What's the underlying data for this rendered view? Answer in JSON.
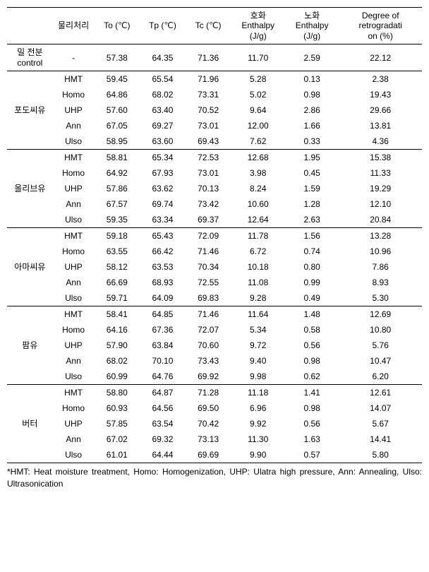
{
  "headers": {
    "col1": "",
    "col2": "물리처리",
    "col3": "To (℃)",
    "col4": "Tp (℃)",
    "col5": "Tc (℃)",
    "col6_line1": "호화",
    "col6_line2": "Enthalpy",
    "col6_line3": "(J/g)",
    "col7_line1": "노화",
    "col7_line2": "Enthalpy",
    "col7_line3": "(J/g)",
    "col8_line1": "Degree of",
    "col8_line2": "retrogradati",
    "col8_line3": "on (%)"
  },
  "groups": [
    {
      "category_line1": "밀 전분",
      "category_line2": "control",
      "rows": [
        {
          "treat": "-",
          "to": "57.38",
          "tp": "64.35",
          "tc": "71.36",
          "e1": "11.70",
          "e2": "2.59",
          "deg": "22.12"
        }
      ]
    },
    {
      "category_line1": "포도씨유",
      "category_line2": "",
      "rows": [
        {
          "treat": "HMT",
          "to": "59.45",
          "tp": "65.54",
          "tc": "71.96",
          "e1": "5.28",
          "e2": "0.13",
          "deg": "2.38"
        },
        {
          "treat": "Homo",
          "to": "64.86",
          "tp": "68.02",
          "tc": "73.31",
          "e1": "5.02",
          "e2": "0.98",
          "deg": "19.43"
        },
        {
          "treat": "UHP",
          "to": "57.60",
          "tp": "63.40",
          "tc": "70.52",
          "e1": "9.64",
          "e2": "2.86",
          "deg": "29.66"
        },
        {
          "treat": "Ann",
          "to": "67.05",
          "tp": "69.27",
          "tc": "73.01",
          "e1": "12.00",
          "e2": "1.66",
          "deg": "13.81"
        },
        {
          "treat": "Ulso",
          "to": "58.95",
          "tp": "63.60",
          "tc": "69.43",
          "e1": "7.62",
          "e2": "0.33",
          "deg": "4.36"
        }
      ]
    },
    {
      "category_line1": "올리브유",
      "category_line2": "",
      "rows": [
        {
          "treat": "HMT",
          "to": "58.81",
          "tp": "65.34",
          "tc": "72.53",
          "e1": "12.68",
          "e2": "1.95",
          "deg": "15.38"
        },
        {
          "treat": "Homo",
          "to": "64.92",
          "tp": "67.93",
          "tc": "73.01",
          "e1": "3.98",
          "e2": "0.45",
          "deg": "11.33"
        },
        {
          "treat": "UHP",
          "to": "57.86",
          "tp": "63.62",
          "tc": "70.13",
          "e1": "8.24",
          "e2": "1.59",
          "deg": "19.29"
        },
        {
          "treat": "Ann",
          "to": "67.57",
          "tp": "69.74",
          "tc": "73.42",
          "e1": "10.60",
          "e2": "1.28",
          "deg": "12.10"
        },
        {
          "treat": "Ulso",
          "to": "59.35",
          "tp": "63.34",
          "tc": "69.37",
          "e1": "12.64",
          "e2": "2.63",
          "deg": "20.84"
        }
      ]
    },
    {
      "category_line1": "아마씨유",
      "category_line2": "",
      "rows": [
        {
          "treat": "HMT",
          "to": "59.18",
          "tp": "65.43",
          "tc": "72.09",
          "e1": "11.78",
          "e2": "1.56",
          "deg": "13.28"
        },
        {
          "treat": "Homo",
          "to": "63.55",
          "tp": "66.42",
          "tc": "71.46",
          "e1": "6.72",
          "e2": "0.74",
          "deg": "10.96"
        },
        {
          "treat": "UHP",
          "to": "58.12",
          "tp": "63.53",
          "tc": "70.34",
          "e1": "10.18",
          "e2": "0.80",
          "deg": "7.86"
        },
        {
          "treat": "Ann",
          "to": "66.69",
          "tp": "68.93",
          "tc": "72.55",
          "e1": "11.08",
          "e2": "0.99",
          "deg": "8.93"
        },
        {
          "treat": "Ulso",
          "to": "59.71",
          "tp": "64.09",
          "tc": "69.83",
          "e1": "9.28",
          "e2": "0.49",
          "deg": "5.30"
        }
      ]
    },
    {
      "category_line1": "팜유",
      "category_line2": "",
      "rows": [
        {
          "treat": "HMT",
          "to": "58.41",
          "tp": "64.85",
          "tc": "71.46",
          "e1": "11.64",
          "e2": "1.48",
          "deg": "12.69"
        },
        {
          "treat": "Homo",
          "to": "64.16",
          "tp": "67.36",
          "tc": "72.07",
          "e1": "5.34",
          "e2": "0.58",
          "deg": "10.80"
        },
        {
          "treat": "UHP",
          "to": "57.90",
          "tp": "63.84",
          "tc": "70.60",
          "e1": "9.72",
          "e2": "0.56",
          "deg": "5.76"
        },
        {
          "treat": "Ann",
          "to": "68.02",
          "tp": "70.10",
          "tc": "73.43",
          "e1": "9.40",
          "e2": "0.98",
          "deg": "10.47"
        },
        {
          "treat": "Ulso",
          "to": "60.99",
          "tp": "64.76",
          "tc": "69.92",
          "e1": "9.98",
          "e2": "0.62",
          "deg": "6.20"
        }
      ]
    },
    {
      "category_line1": "버터",
      "category_line2": "",
      "rows": [
        {
          "treat": "HMT",
          "to": "58.80",
          "tp": "64.87",
          "tc": "71.28",
          "e1": "11.18",
          "e2": "1.41",
          "deg": "12.61"
        },
        {
          "treat": "Homo",
          "to": "60.93",
          "tp": "64.56",
          "tc": "69.50",
          "e1": "6.96",
          "e2": "0.98",
          "deg": "14.07"
        },
        {
          "treat": "UHP",
          "to": "57.85",
          "tp": "63.54",
          "tc": "70.42",
          "e1": "9.92",
          "e2": "0.56",
          "deg": "5.67"
        },
        {
          "treat": "Ann",
          "to": "67.02",
          "tp": "69.32",
          "tc": "73.13",
          "e1": "11.30",
          "e2": "1.63",
          "deg": "14.41"
        },
        {
          "treat": "Ulso",
          "to": "61.01",
          "tp": "64.44",
          "tc": "69.69",
          "e1": "9.90",
          "e2": "0.57",
          "deg": "5.80"
        }
      ]
    }
  ],
  "footnote": "*HMT: Heat moisture treatment, Homo: Homogenization, UHP: Ulatra high pressure, Ann: Annealing, Ulso: Ultrasonication"
}
